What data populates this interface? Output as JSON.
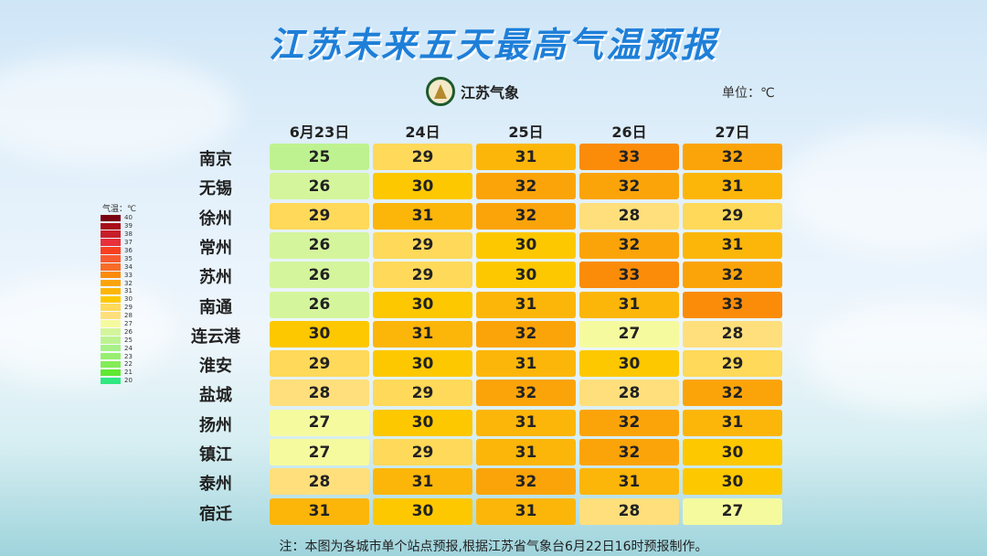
{
  "title": "江苏未来五天最高气温预报",
  "logo_text": "江苏气象",
  "unit_label": "单位：℃",
  "footnote": "注：本图为各城市单个站点预报,根据江苏省气象台6月22日16时预报制作。",
  "chart_data": {
    "type": "heatmap",
    "title": "江苏未来五天最高气温预报",
    "columns": [
      "6月23日",
      "24日",
      "25日",
      "26日",
      "27日"
    ],
    "rows": [
      "南京",
      "无锡",
      "徐州",
      "常州",
      "苏州",
      "南通",
      "连云港",
      "淮安",
      "盐城",
      "扬州",
      "镇江",
      "泰州",
      "宿迁"
    ],
    "values": [
      [
        25,
        29,
        31,
        33,
        32
      ],
      [
        26,
        30,
        32,
        32,
        31
      ],
      [
        29,
        31,
        32,
        28,
        29
      ],
      [
        26,
        29,
        30,
        32,
        31
      ],
      [
        26,
        29,
        30,
        33,
        32
      ],
      [
        26,
        30,
        31,
        31,
        33
      ],
      [
        30,
        31,
        32,
        27,
        28
      ],
      [
        29,
        30,
        31,
        30,
        29
      ],
      [
        28,
        29,
        32,
        28,
        32
      ],
      [
        27,
        30,
        31,
        32,
        31
      ],
      [
        27,
        29,
        31,
        32,
        30
      ],
      [
        28,
        31,
        32,
        31,
        30
      ],
      [
        31,
        30,
        31,
        28,
        27
      ]
    ],
    "legend": {
      "title": "气温：℃",
      "values": [
        40,
        39,
        38,
        37,
        36,
        35,
        34,
        33,
        32,
        31,
        30,
        29,
        28,
        27,
        26,
        25,
        24,
        23,
        22,
        21,
        20
      ]
    },
    "colors": {
      "40": "#7a0010",
      "39": "#a8101a",
      "38": "#c81e28",
      "37": "#e8303a",
      "36": "#f84020",
      "35": "#f85a30",
      "34": "#f86c28",
      "33": "#fa8c0a",
      "32": "#fba40a",
      "31": "#fcb60a",
      "30": "#fdc800",
      "29": "#fed95a",
      "28": "#fedf7c",
      "27": "#f6fa9e",
      "26": "#d4f59c",
      "25": "#bef290",
      "24": "#a8f088",
      "23": "#98ee70",
      "22": "#84ec58",
      "21": "#60e830",
      "20": "#30e880"
    }
  }
}
